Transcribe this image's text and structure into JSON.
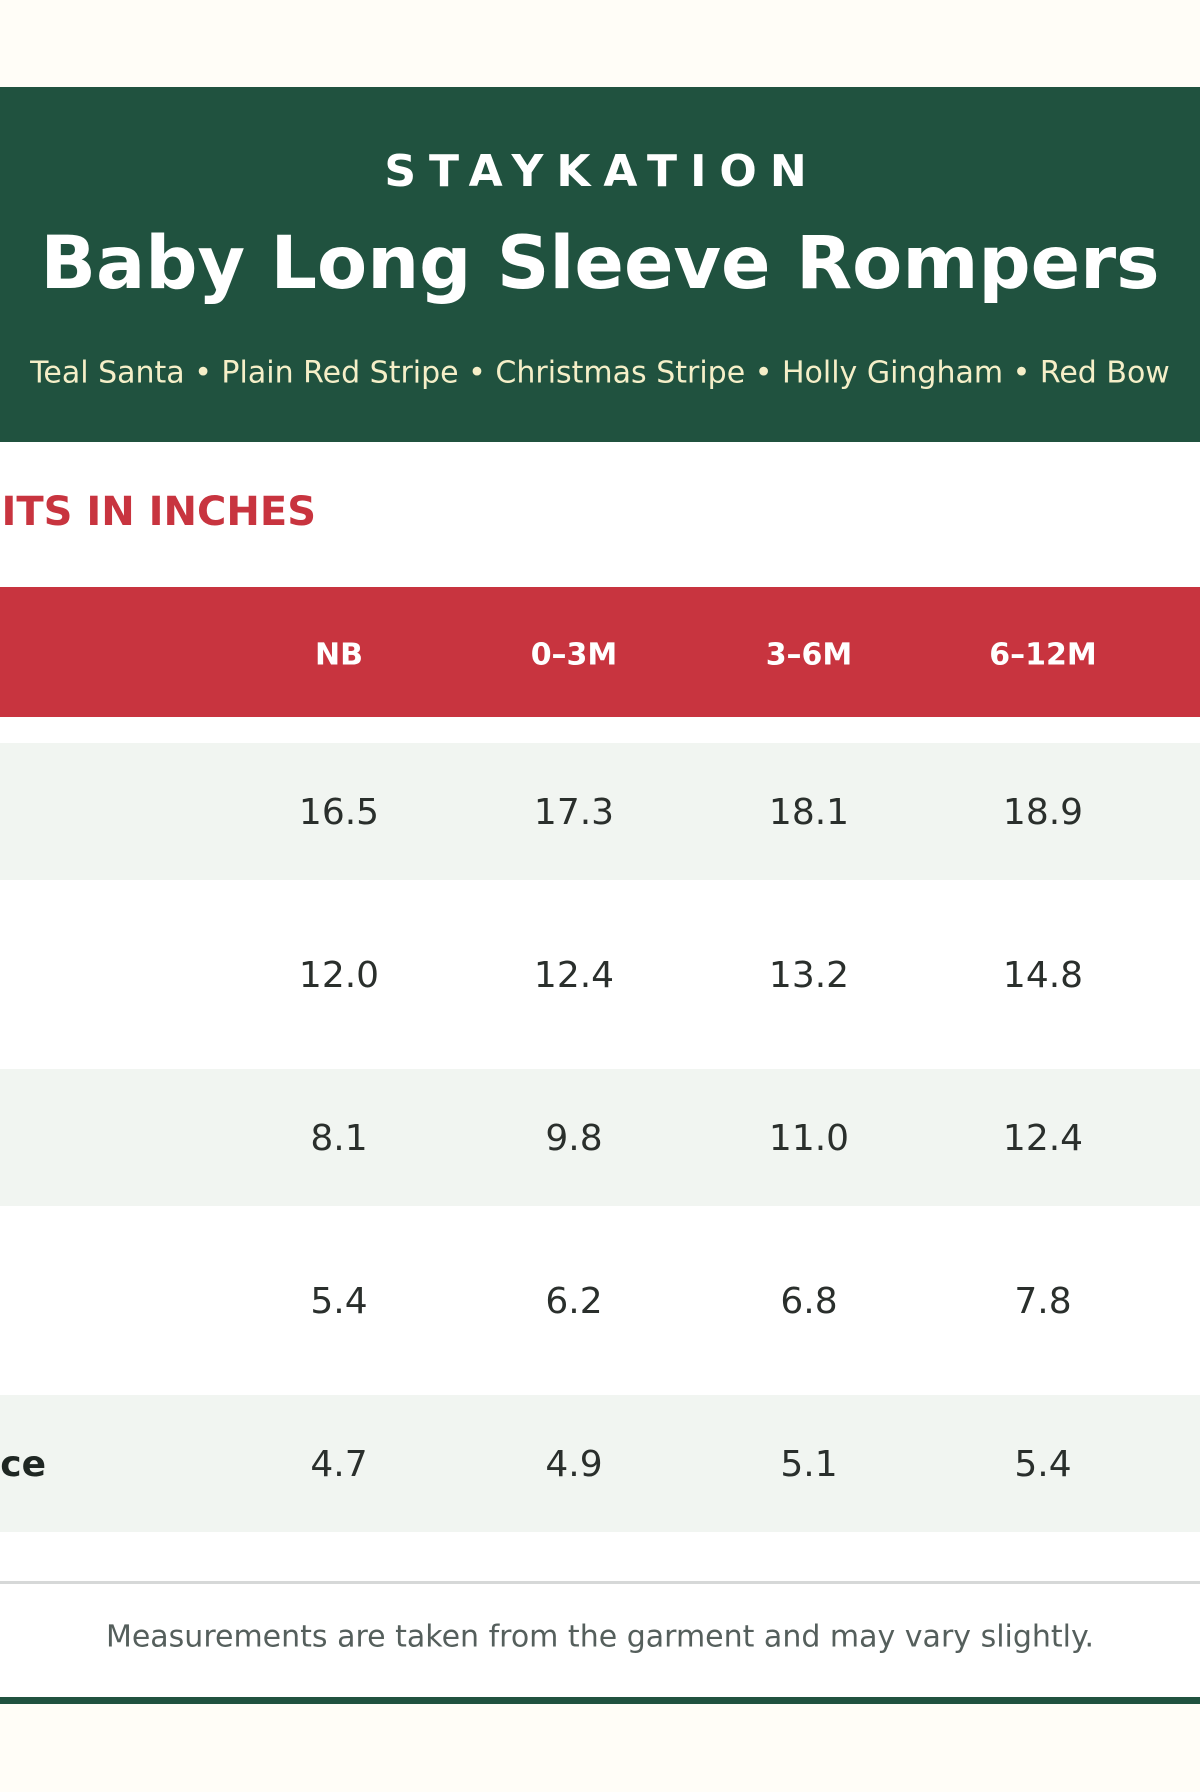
{
  "header": {
    "brand": "STAYKATION",
    "title": "Baby Long Sleeve Rompers",
    "subtitle": "Teal Santa • Plain Red Stripe • Christmas Stripe • Holly Gingham • Red Bow"
  },
  "section": {
    "title": "ITS IN INCHES"
  },
  "table": {
    "columns": [
      "NB",
      "0–3M",
      "3–6M",
      "6–12M"
    ],
    "rows": [
      {
        "values": [
          "16.5",
          "17.3",
          "18.1",
          "18.9"
        ]
      },
      {
        "values": [
          "12.0",
          "12.4",
          "13.2",
          "14.8"
        ]
      },
      {
        "values": [
          "8.1",
          "9.8",
          "11.0",
          "12.4"
        ]
      },
      {
        "values": [
          "5.4",
          "6.2",
          "6.8",
          "7.8"
        ]
      },
      {
        "label": "ce",
        "values": [
          "4.7",
          "4.9",
          "5.1",
          "5.4"
        ]
      }
    ]
  },
  "footer": {
    "note": "Measurements are taken from the garment and may vary slightly."
  }
}
